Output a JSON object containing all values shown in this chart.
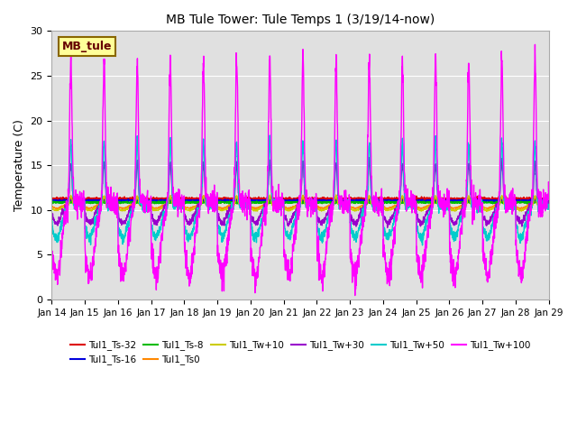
{
  "title": "MB Tule Tower: Tule Temps 1 (3/19/14-now)",
  "ylabel": "Temperature (C)",
  "ylim": [
    0,
    30
  ],
  "yticks": [
    0,
    5,
    10,
    15,
    20,
    25,
    30
  ],
  "x_tick_labels": [
    "Jan 14",
    "Jan 15",
    "Jan 16",
    "Jan 17",
    "Jan 18",
    "Jan 19",
    "Jan 20",
    "Jan 21",
    "Jan 22",
    "Jan 23",
    "Jan 24",
    "Jan 25",
    "Jan 26",
    "Jan 27",
    "Jan 28",
    "Jan 29"
  ],
  "n_days": 15,
  "background_color": "#e0e0e0",
  "series_order": [
    "Tul1_Ts-32",
    "Tul1_Ts-16",
    "Tul1_Ts-8",
    "Tul1_Ts0",
    "Tul1_Tw+10",
    "Tul1_Tw+30",
    "Tul1_Tw+50",
    "Tul1_Tw+100"
  ],
  "series": {
    "Tul1_Ts-32": {
      "color": "#dd0000",
      "lw": 1.2,
      "base": 11.25,
      "flat": true,
      "amp": 0.08
    },
    "Tul1_Ts-16": {
      "color": "#0000dd",
      "lw": 1.2,
      "base": 11.05,
      "flat": true,
      "amp": 0.06
    },
    "Tul1_Ts-8": {
      "color": "#00bb00",
      "lw": 1.2,
      "base": 10.85,
      "flat": true,
      "amp": 0.05
    },
    "Tul1_Ts0": {
      "color": "#ff8800",
      "lw": 1.0,
      "base": 10.65,
      "flat": false,
      "amp": 0.5
    },
    "Tul1_Tw+10": {
      "color": "#cccc00",
      "lw": 1.0,
      "base": 10.5,
      "flat": false,
      "amp": 0.6
    },
    "Tul1_Tw+30": {
      "color": "#9900cc",
      "lw": 1.0,
      "base": 10.8,
      "flat": false,
      "amp": 2.5
    },
    "Tul1_Tw+50": {
      "color": "#00cccc",
      "lw": 1.0,
      "base": 10.5,
      "flat": false,
      "amp": 4.0
    },
    "Tul1_Tw+100": {
      "color": "#ff00ff",
      "lw": 1.0,
      "base": 10.8,
      "flat": false,
      "amp": 9.0
    }
  },
  "legend_box": {
    "text": "MB_tule",
    "facecolor": "#ffff99",
    "edgecolor": "#886600",
    "textcolor": "#660000"
  },
  "legend_ncol": 6,
  "figsize": [
    6.4,
    4.8
  ],
  "dpi": 100
}
